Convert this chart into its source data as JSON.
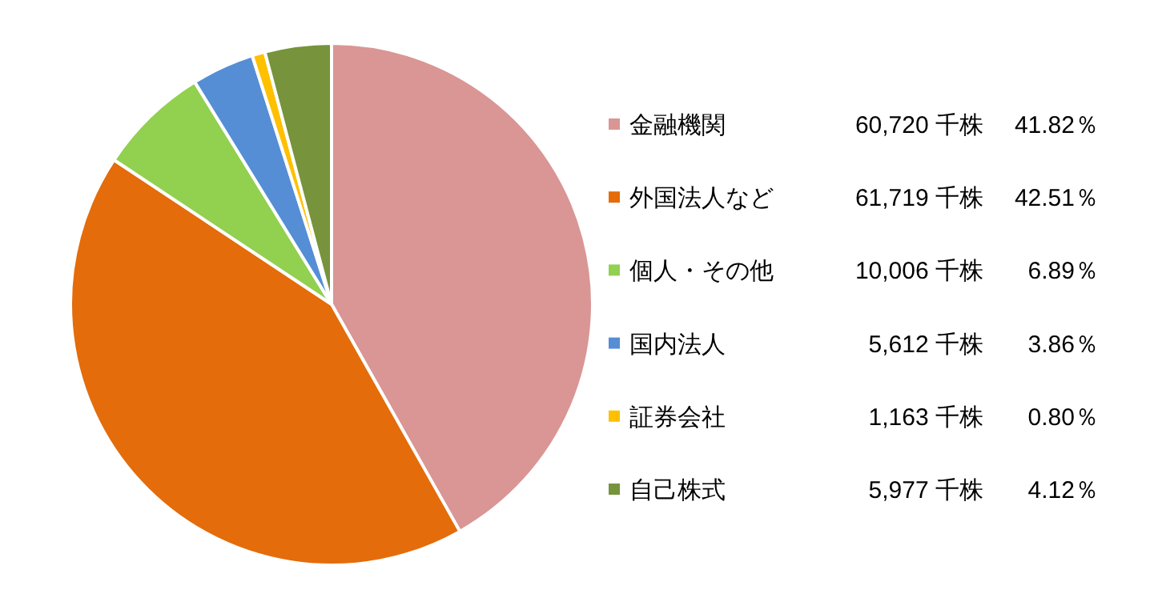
{
  "chart_data": {
    "type": "pie",
    "categories": [
      "金融機関",
      "外国法人など",
      "個人・その他",
      "国内法人",
      "証券会社",
      "自己株式"
    ],
    "values": [
      60720,
      61719,
      10006,
      5612,
      1163,
      5977
    ],
    "colors": [
      "#d99694",
      "#e46c0a",
      "#92d050",
      "#558ed5",
      "#ffc000",
      "#77933c"
    ],
    "value_labels": [
      "60,720 千株",
      "61,719 千株",
      "10,006 千株",
      "5,612 千株",
      "1,163 千株",
      "5,977 千株"
    ],
    "annotations": [
      "41.82％",
      "42.51％",
      "6.89％",
      "3.86％",
      "0.80％",
      "4.12％"
    ],
    "legend": "right"
  }
}
